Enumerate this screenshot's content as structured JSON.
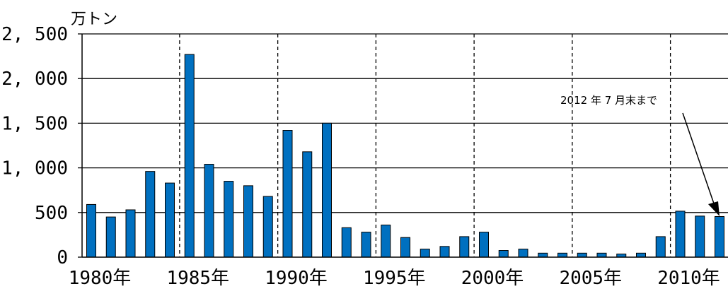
{
  "chart_data": {
    "type": "bar",
    "ylabel": "万トン",
    "ylim": [
      0,
      2500
    ],
    "yticks": [
      "0",
      "500",
      "1, 000",
      "1, 500",
      "2, 000",
      "2, 500"
    ],
    "ytick_values": [
      0,
      500,
      1000,
      1500,
      2000,
      2500
    ],
    "xticks": [
      "1980年",
      "1985年",
      "1990年",
      "1995年",
      "2000年",
      "2005年",
      "2010年"
    ],
    "xtick_years": [
      1980,
      1985,
      1990,
      1995,
      2000,
      2005,
      2010
    ],
    "years": [
      1980,
      1981,
      1982,
      1983,
      1984,
      1985,
      1986,
      1987,
      1988,
      1989,
      1990,
      1991,
      1992,
      1993,
      1994,
      1995,
      1996,
      1997,
      1998,
      1999,
      2000,
      2001,
      2002,
      2003,
      2004,
      2005,
      2006,
      2007,
      2008,
      2009,
      2010,
      2011,
      2012
    ],
    "values": [
      590,
      450,
      530,
      960,
      830,
      2270,
      1040,
      850,
      800,
      680,
      1420,
      1180,
      1500,
      330,
      280,
      360,
      220,
      90,
      120,
      230,
      280,
      75,
      90,
      45,
      45,
      45,
      45,
      35,
      45,
      230,
      515,
      460,
      455
    ],
    "bar_color": "#0070c0",
    "grid": true,
    "annotation": "2012 年 7 月末まで"
  }
}
